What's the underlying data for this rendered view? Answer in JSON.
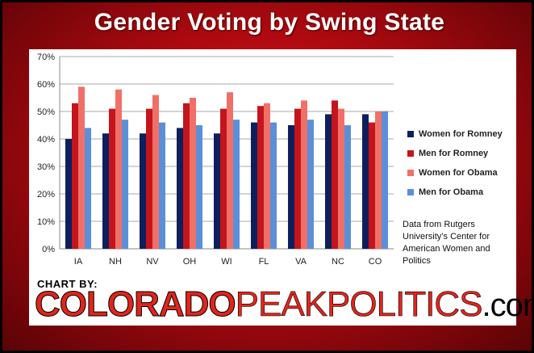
{
  "title": "Gender Voting by Swing State",
  "chart_data": {
    "type": "bar",
    "categories": [
      "IA",
      "NH",
      "NV",
      "OH",
      "WI",
      "FL",
      "VA",
      "NC",
      "CO"
    ],
    "series": [
      {
        "name": "Women for Romney",
        "color": "#0d1f5c",
        "values": [
          40,
          42,
          42,
          44,
          42,
          46,
          45,
          49,
          49
        ]
      },
      {
        "name": "Men for Romney",
        "color": "#c4151c",
        "values": [
          53,
          51,
          51,
          53,
          51,
          52,
          51,
          54,
          46
        ]
      },
      {
        "name": "Women for Obama",
        "color": "#f07068",
        "values": [
          59,
          58,
          56,
          55,
          57,
          53,
          54,
          51,
          50
        ]
      },
      {
        "name": "Men for Obama",
        "color": "#5b8fd8",
        "values": [
          44,
          47,
          46,
          45,
          47,
          46,
          47,
          45,
          50
        ]
      }
    ],
    "ylim": [
      0,
      70
    ],
    "yticks": [
      "0%",
      "10%",
      "20%",
      "30%",
      "40%",
      "50%",
      "60%",
      "70%"
    ],
    "grid": true,
    "legend_position": "right"
  },
  "source_note": "Data from Rutgers University’s Center for American Women and Politics",
  "branding": {
    "chart_by": "CHART BY:",
    "name_bold": "COLORADO",
    "name_light": "PEAKPOLITICS",
    "suffix": ".com"
  }
}
